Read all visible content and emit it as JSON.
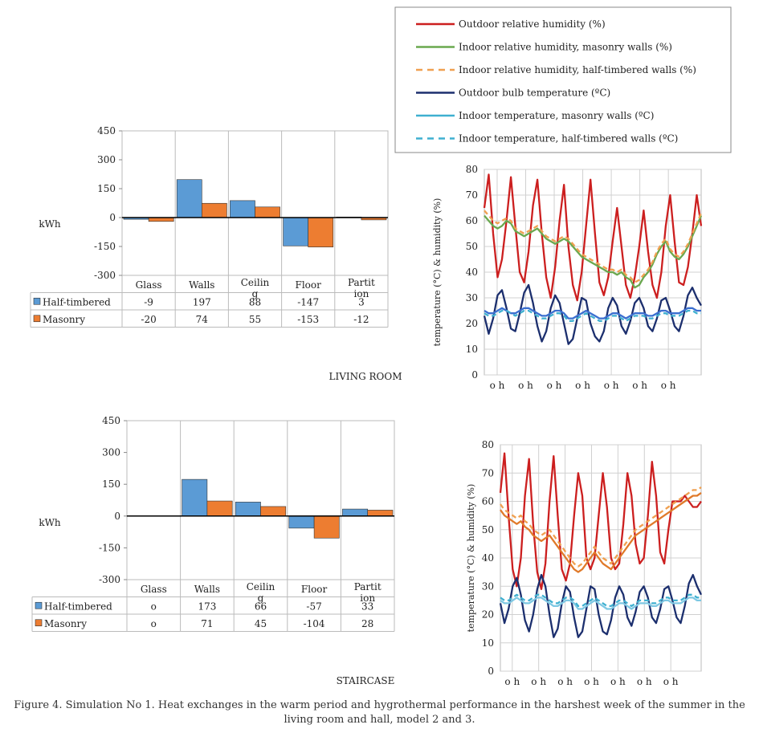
{
  "caption": "Figure 4. Simulation No 1. Heat exchanges in the warm period and hygrothermal performance in the harshest week of the summer in the living room and hall, model 2 and 3.",
  "legend": {
    "entries": [
      {
        "label": "Outdoor relative humidity (%)",
        "color": "#cc1f1f",
        "dashed": false
      },
      {
        "label": "Indoor relative humidity, masonry walls (%)",
        "color": "#6aa84f",
        "dashed": false
      },
      {
        "label": "Indoor relative humidity, half-timbered walls (%)",
        "color": "#f0a050",
        "dashed": true
      },
      {
        "label": "Outdoor bulb temperature (ºC)",
        "color": "#1c2f6e",
        "dashed": false
      },
      {
        "label": "Indoor temperature, masonry walls (ºC)",
        "color": "#3fb0d0",
        "dashed": false
      },
      {
        "label": "Indoor temperature, half-timbered walls (ºC)",
        "color": "#3fb0d0",
        "dashed": true
      }
    ]
  },
  "chart_data": [
    {
      "type": "bar",
      "panel": "LIVING ROOM",
      "ylabel": "kWh",
      "ylim": [
        -300,
        450
      ],
      "yticks": [
        "450",
        "300",
        "150",
        "0",
        "-150",
        "-300"
      ],
      "categories": [
        "Glass",
        "Walls",
        "Ceilin g",
        "Floor",
        "Partit ion"
      ],
      "series": [
        {
          "name": "Half-timbered",
          "color": "#5b9bd5",
          "values": [
            -9,
            197,
            88,
            -147,
            3
          ],
          "labels": [
            "-9",
            "197",
            "88",
            "-147",
            "3"
          ]
        },
        {
          "name": "Masonry",
          "color": "#ed7d31",
          "values": [
            -20,
            74,
            55,
            -153,
            -12
          ],
          "labels": [
            "-20",
            "74",
            "55",
            "-153",
            "-12"
          ]
        }
      ]
    },
    {
      "type": "bar",
      "panel": "STAIRCASE",
      "ylabel": "kWh",
      "ylim": [
        -300,
        450
      ],
      "yticks": [
        "450",
        "300",
        "150",
        "0",
        "-150",
        "-300"
      ],
      "categories": [
        "Glass",
        "Walls",
        "Ceilin g",
        "Floor",
        "Partit ion"
      ],
      "series": [
        {
          "name": "Half-timbered",
          "color": "#5b9bd5",
          "values": [
            0,
            173,
            66,
            -57,
            33
          ],
          "labels": [
            "o",
            "173",
            "66",
            "-57",
            "33"
          ]
        },
        {
          "name": "Masonry",
          "color": "#ed7d31",
          "values": [
            0,
            71,
            45,
            -104,
            28
          ],
          "labels": [
            "o",
            "71",
            "45",
            "-104",
            "28"
          ]
        }
      ]
    },
    {
      "type": "line",
      "panel": "LIVING ROOM",
      "ylabel": "temperature (°C) & humidity (%)",
      "ylim": [
        0,
        80
      ],
      "yticks": [
        "80",
        "70",
        "60",
        "50",
        "40",
        "30",
        "20",
        "10",
        "0"
      ],
      "xticklabels": [
        "o h",
        "o h",
        "o h",
        "o h",
        "o h",
        "o h",
        "o h"
      ],
      "grid": true,
      "series": [
        {
          "name": "Outdoor relative humidity (%)",
          "color": "#cc1f1f",
          "dashed": false,
          "values": [
            65,
            78,
            55,
            38,
            45,
            60,
            77,
            58,
            40,
            36,
            48,
            66,
            76,
            55,
            38,
            30,
            42,
            60,
            74,
            50,
            35,
            29,
            40,
            58,
            76,
            55,
            36,
            31,
            38,
            52,
            65,
            50,
            35,
            30,
            38,
            50,
            64,
            48,
            35,
            30,
            40,
            58,
            70,
            52,
            36,
            35,
            42,
            55,
            70,
            58
          ]
        },
        {
          "name": "Indoor relative humidity, masonry walls (%)",
          "color": "#6aa84f",
          "dashed": false,
          "values": [
            62,
            60,
            58,
            57,
            58,
            60,
            59,
            56,
            55,
            54,
            55,
            56,
            57,
            55,
            53,
            52,
            51,
            52,
            53,
            52,
            50,
            48,
            46,
            45,
            44,
            43,
            42,
            41,
            40,
            40,
            39,
            40,
            38,
            37,
            34,
            35,
            38,
            40,
            43,
            47,
            50,
            52,
            48,
            46,
            45,
            47,
            50,
            54,
            58,
            62
          ]
        },
        {
          "name": "Indoor relative humidity, half-timbered walls (%)",
          "color": "#f0a050",
          "dashed": true,
          "values": [
            64,
            62,
            60,
            59,
            60,
            61,
            60,
            57,
            56,
            55,
            56,
            57,
            58,
            56,
            54,
            53,
            52,
            53,
            54,
            53,
            51,
            49,
            47,
            46,
            45,
            44,
            43,
            42,
            41,
            41,
            40,
            41,
            39,
            38,
            36,
            37,
            39,
            41,
            44,
            48,
            51,
            53,
            49,
            47,
            46,
            48,
            51,
            55,
            59,
            63
          ]
        },
        {
          "name": "Outdoor bulb temperature (ºC)",
          "color": "#1c2f6e",
          "dashed": false,
          "values": [
            23,
            16,
            22,
            31,
            33,
            26,
            18,
            17,
            24,
            32,
            35,
            28,
            19,
            13,
            17,
            26,
            31,
            28,
            20,
            12,
            14,
            22,
            30,
            29,
            20,
            15,
            13,
            17,
            26,
            30,
            27,
            19,
            16,
            21,
            28,
            30,
            26,
            19,
            17,
            22,
            29,
            30,
            25,
            19,
            17,
            23,
            31,
            34,
            30,
            27
          ]
        },
        {
          "name": "Indoor temperature, masonry walls (ºC)",
          "color": "#3b6fd0",
          "dashed": false,
          "values": [
            25,
            24,
            24,
            25,
            26,
            25,
            24,
            24,
            25,
            26,
            26,
            25,
            24,
            23,
            23,
            24,
            25,
            25,
            24,
            22,
            22,
            23,
            24,
            25,
            24,
            23,
            22,
            22,
            23,
            24,
            24,
            23,
            22,
            23,
            24,
            24,
            24,
            23,
            23,
            24,
            25,
            25,
            24,
            24,
            24,
            25,
            26,
            26,
            25,
            25
          ]
        },
        {
          "name": "Indoor temperature, half-timbered walls (ºC)",
          "color": "#3fb0d0",
          "dashed": true,
          "values": [
            24,
            23,
            23,
            24,
            25,
            25,
            24,
            23,
            24,
            25,
            25,
            24,
            23,
            22,
            22,
            23,
            24,
            24,
            23,
            21,
            21,
            22,
            23,
            24,
            23,
            22,
            21,
            21,
            22,
            23,
            23,
            22,
            21,
            22,
            23,
            23,
            23,
            22,
            22,
            23,
            24,
            24,
            23,
            23,
            23,
            24,
            25,
            25,
            24,
            24
          ]
        }
      ]
    },
    {
      "type": "line",
      "panel": "STAIRCASE",
      "ylabel": "temperature (°C) & humidity (%)",
      "ylim": [
        0,
        80
      ],
      "yticks": [
        "80",
        "70",
        "60",
        "50",
        "40",
        "30",
        "20",
        "10",
        "0"
      ],
      "xticklabels": [
        "o h",
        "o h",
        "o h",
        "o h",
        "o h",
        "o h",
        "o h"
      ],
      "grid": true,
      "series": [
        {
          "name": "Outdoor relative humidity (%)",
          "color": "#cc1f1f",
          "dashed": false,
          "values": [
            63,
            77,
            55,
            36,
            30,
            40,
            62,
            75,
            52,
            35,
            29,
            38,
            60,
            76,
            55,
            36,
            32,
            38,
            55,
            70,
            62,
            40,
            36,
            40,
            55,
            70,
            58,
            40,
            36,
            38,
            52,
            70,
            62,
            45,
            38,
            40,
            55,
            74,
            62,
            42,
            38,
            50,
            60,
            60,
            60,
            62,
            60,
            58,
            58,
            60
          ]
        },
        {
          "name": "Indoor relative humidity, masonry walls (%)",
          "color": "#e07a2a",
          "dashed": false,
          "values": [
            57,
            55,
            54,
            53,
            52,
            53,
            51,
            50,
            48,
            47,
            46,
            47,
            48,
            46,
            44,
            42,
            40,
            38,
            36,
            35,
            36,
            38,
            40,
            42,
            40,
            38,
            37,
            36,
            38,
            40,
            42,
            44,
            46,
            48,
            49,
            50,
            51,
            52,
            53,
            54,
            55,
            56,
            57,
            58,
            59,
            60,
            61,
            62,
            62,
            63
          ]
        },
        {
          "name": "Indoor relative humidity, half-timbered walls (%)",
          "color": "#f0a050",
          "dashed": true,
          "values": [
            59,
            57,
            56,
            55,
            54,
            55,
            53,
            52,
            50,
            49,
            48,
            49,
            50,
            48,
            46,
            44,
            42,
            40,
            38,
            37,
            38,
            40,
            42,
            44,
            42,
            40,
            39,
            38,
            40,
            42,
            44,
            46,
            48,
            50,
            51,
            52,
            53,
            54,
            55,
            56,
            57,
            58,
            59,
            60,
            61,
            62,
            63,
            64,
            64,
            65
          ]
        },
        {
          "name": "Outdoor bulb temperature (ºC)",
          "color": "#1c2f6e",
          "dashed": false,
          "values": [
            24,
            17,
            22,
            30,
            33,
            27,
            18,
            14,
            20,
            29,
            34,
            30,
            20,
            12,
            15,
            24,
            30,
            28,
            19,
            12,
            14,
            22,
            30,
            29,
            20,
            14,
            13,
            18,
            26,
            30,
            27,
            19,
            16,
            21,
            28,
            30,
            26,
            19,
            17,
            22,
            29,
            30,
            25,
            19,
            17,
            23,
            31,
            34,
            30,
            27
          ]
        },
        {
          "name": "Indoor temperature, masonry walls (ºC)",
          "color": "#7ec8e3",
          "dashed": false,
          "values": [
            25,
            24,
            24,
            25,
            26,
            25,
            24,
            24,
            25,
            26,
            26,
            25,
            24,
            23,
            23,
            24,
            25,
            25,
            24,
            22,
            22,
            23,
            24,
            25,
            24,
            23,
            22,
            22,
            23,
            24,
            24,
            23,
            22,
            23,
            24,
            24,
            24,
            23,
            23,
            24,
            25,
            25,
            24,
            24,
            24,
            25,
            26,
            26,
            25,
            25
          ]
        },
        {
          "name": "Indoor temperature, half-timbered walls (ºC)",
          "color": "#3fb0d0",
          "dashed": true,
          "values": [
            26,
            25,
            25,
            26,
            27,
            26,
            25,
            25,
            26,
            27,
            27,
            26,
            25,
            24,
            24,
            25,
            26,
            26,
            25,
            23,
            23,
            24,
            25,
            26,
            25,
            24,
            23,
            23,
            24,
            25,
            25,
            24,
            23,
            24,
            25,
            25,
            25,
            24,
            24,
            25,
            26,
            26,
            25,
            25,
            25,
            26,
            27,
            27,
            26,
            26
          ]
        }
      ]
    }
  ]
}
